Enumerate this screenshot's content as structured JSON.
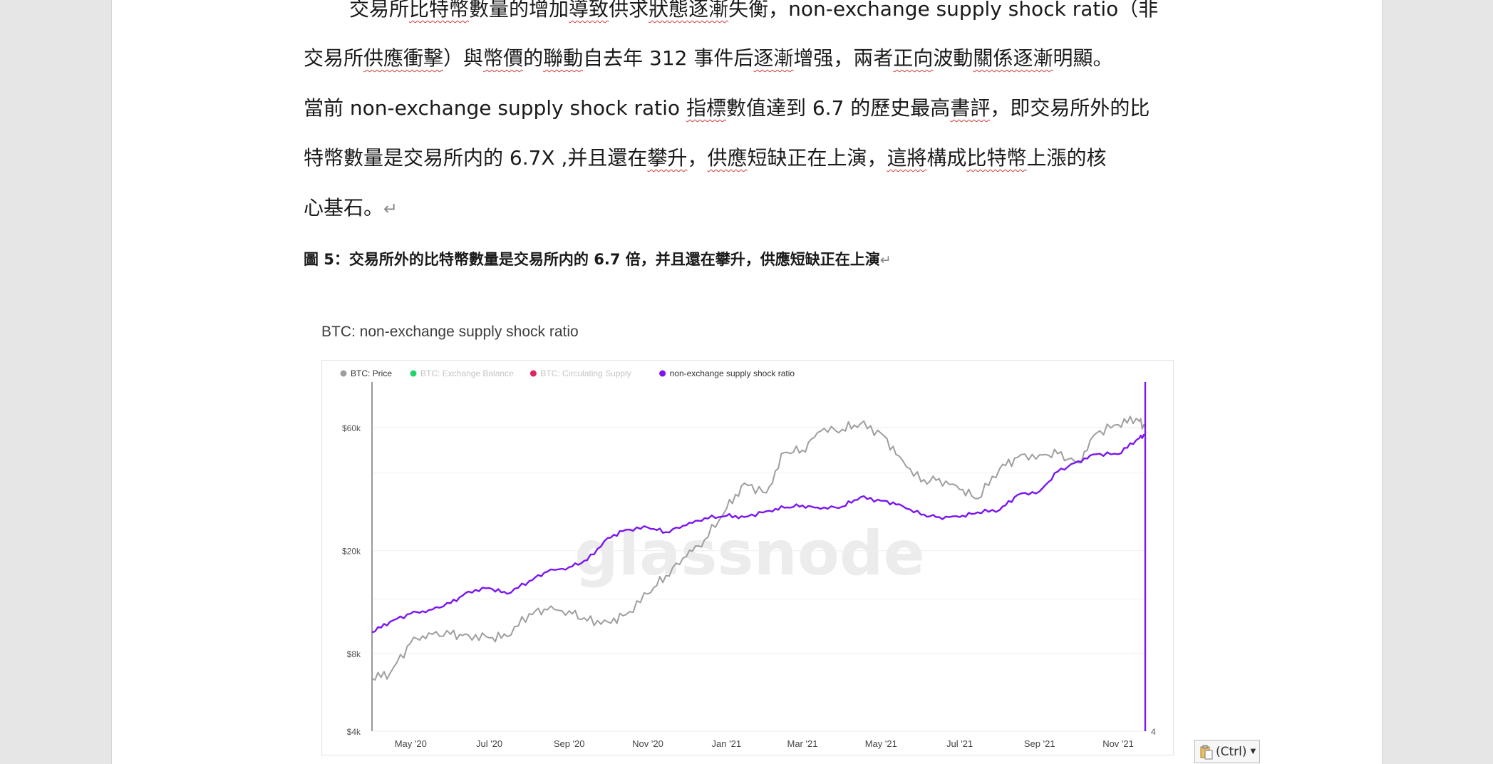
{
  "document": {
    "paragraph_lines": [
      "交易所比特幣數量的增加導致供求狀態逐漸失衡，non-exchange supply shock ratio（非",
      "交易所供應衝擊）與幣價的聯動自去年 312 事件后逐漸增强，兩者正向波動關係逐漸明顯。",
      "當前 non-exchange supply shock ratio 指標數值達到 6.7 的歷史最高書評，即交易所外的比",
      "特幣數量是交易所内的 6.7X ,并且還在攀升，供應短缺正在上演，這將構成比特幣上漲的核",
      "心基石。"
    ],
    "paragraph_mark": "↵",
    "figure_caption": "圖 5：交易所外的比特幣數量是交易所内的 6.7 倍，并且還在攀升，供應短缺正在上演"
  },
  "chart_data": {
    "type": "line",
    "title": "BTC: non-exchange supply shock ratio",
    "watermark": "glassnode",
    "legend": {
      "placement": "top-left",
      "items": [
        {
          "label": "BTC: Price",
          "color": "#9e9e9e",
          "active": true
        },
        {
          "label": "BTC: Exchange Balance",
          "color": "#22d36a",
          "active": false
        },
        {
          "label": "BTC: Circulating Supply",
          "color": "#e0245e",
          "active": false
        },
        {
          "label": "non-exchange supply shock ratio",
          "color": "#7b16ef",
          "active": true
        }
      ]
    },
    "x_ticks": [
      "May '20",
      "Jul '20",
      "Sep '20",
      "Nov '20",
      "Jan '21",
      "Mar '21",
      "May '21",
      "Jul '21",
      "Sep '21",
      "Nov '21"
    ],
    "y_left": {
      "scale": "log",
      "ticks": [
        "$4k",
        "$8k",
        "$20k",
        "$60k"
      ],
      "tick_values": [
        4000,
        8000,
        20000,
        60000
      ],
      "range": [
        4000,
        90000
      ]
    },
    "y_right": {
      "ticks": [
        "4"
      ],
      "tick_values": [
        4
      ],
      "range": [
        4,
        7
      ]
    },
    "x_range": [
      "2020-04-01",
      "2021-11-22"
    ],
    "grid": true,
    "series": [
      {
        "name": "BTC: Price",
        "color": "#9e9e9e",
        "axis": "left",
        "x": [
          "2020-04-01",
          "2020-04-15",
          "2020-05-01",
          "2020-05-15",
          "2020-06-01",
          "2020-06-15",
          "2020-07-01",
          "2020-07-15",
          "2020-08-01",
          "2020-08-15",
          "2020-09-01",
          "2020-09-15",
          "2020-10-01",
          "2020-10-15",
          "2020-11-01",
          "2020-11-15",
          "2020-12-01",
          "2020-12-15",
          "2021-01-01",
          "2021-01-15",
          "2021-02-01",
          "2021-02-15",
          "2021-03-01",
          "2021-03-15",
          "2021-04-01",
          "2021-04-15",
          "2021-05-01",
          "2021-05-15",
          "2021-06-01",
          "2021-06-15",
          "2021-07-01",
          "2021-07-15",
          "2021-08-01",
          "2021-08-15",
          "2021-09-01",
          "2021-09-15",
          "2021-10-01",
          "2021-10-15",
          "2021-11-01",
          "2021-11-15",
          "2021-11-22"
        ],
        "values": [
          6400,
          6700,
          8800,
          9600,
          9500,
          9400,
          9200,
          9300,
          11400,
          11800,
          11700,
          10700,
          10600,
          11300,
          13600,
          16000,
          19000,
          22000,
          29000,
          36500,
          33500,
          48000,
          49000,
          58000,
          59000,
          62000,
          57000,
          46500,
          37000,
          38000,
          34500,
          31800,
          41500,
          46000,
          47000,
          47500,
          43800,
          57000,
          61500,
          65000,
          60000
        ]
      },
      {
        "name": "non-exchange supply shock ratio",
        "color": "#7b16ef",
        "axis": "right",
        "x": [
          "2020-04-01",
          "2020-04-15",
          "2020-05-01",
          "2020-05-15",
          "2020-06-01",
          "2020-06-15",
          "2020-07-01",
          "2020-07-15",
          "2020-08-01",
          "2020-08-15",
          "2020-09-01",
          "2020-09-15",
          "2020-10-01",
          "2020-10-15",
          "2020-11-01",
          "2020-11-15",
          "2020-12-01",
          "2020-12-15",
          "2021-01-01",
          "2021-01-15",
          "2021-02-01",
          "2021-02-15",
          "2021-03-01",
          "2021-03-15",
          "2021-04-01",
          "2021-04-15",
          "2021-05-01",
          "2021-05-15",
          "2021-06-01",
          "2021-06-15",
          "2021-07-01",
          "2021-07-15",
          "2021-08-01",
          "2021-08-15",
          "2021-09-01",
          "2021-09-15",
          "2021-10-01",
          "2021-10-15",
          "2021-11-01",
          "2021-11-15",
          "2021-11-22"
        ],
        "values": [
          4.85,
          4.94,
          5.01,
          5.04,
          5.1,
          5.2,
          5.23,
          5.18,
          5.29,
          5.37,
          5.41,
          5.47,
          5.66,
          5.73,
          5.75,
          5.71,
          5.77,
          5.83,
          5.85,
          5.84,
          5.89,
          5.92,
          5.94,
          5.91,
          5.93,
          6.01,
          5.98,
          5.95,
          5.86,
          5.84,
          5.84,
          5.88,
          5.9,
          6.03,
          6.06,
          6.23,
          6.32,
          6.38,
          6.38,
          6.5,
          6.55
        ]
      }
    ]
  },
  "ctrl_button": {
    "label": "(Ctrl)",
    "icon": "clipboard-icon"
  }
}
